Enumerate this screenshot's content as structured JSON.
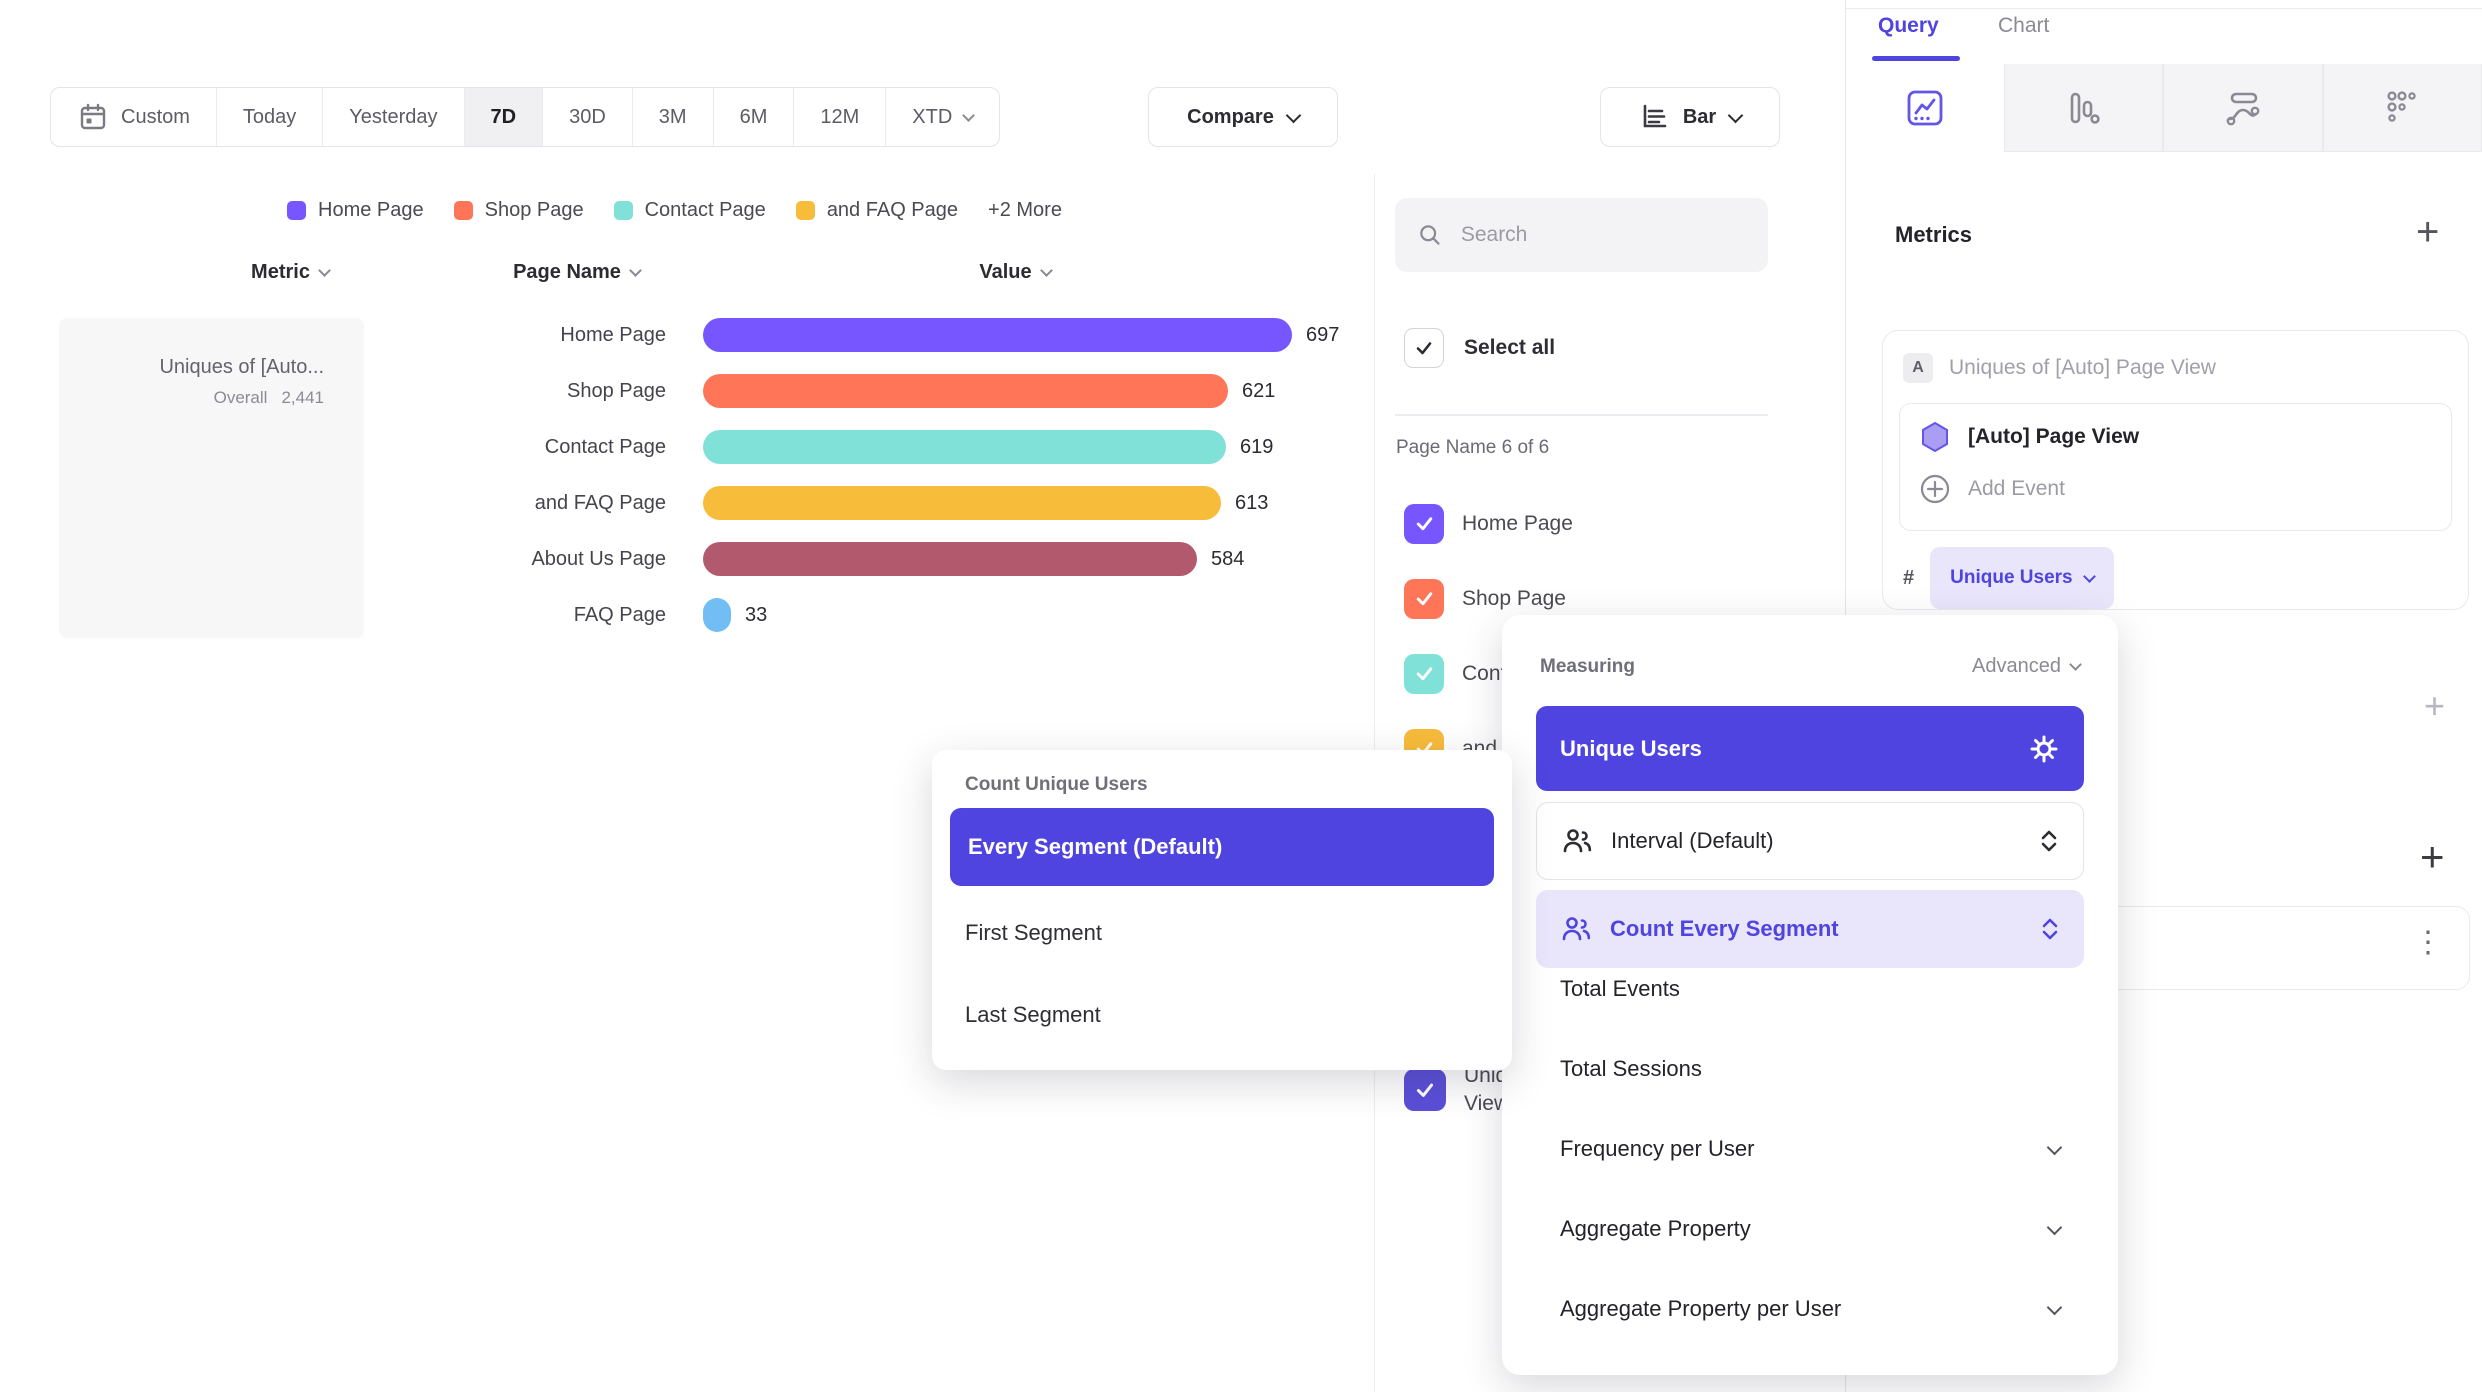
{
  "toolbar": {
    "date_ranges": [
      {
        "label": "Custom",
        "icon": "calendar"
      },
      {
        "label": "Today"
      },
      {
        "label": "Yesterday"
      },
      {
        "label": "7D",
        "active": true
      },
      {
        "label": "30D"
      },
      {
        "label": "3M"
      },
      {
        "label": "6M"
      },
      {
        "label": "12M"
      },
      {
        "label": "XTD",
        "chevron": true
      }
    ],
    "compare": "Compare",
    "chart_type": "Bar"
  },
  "legend": {
    "items": [
      {
        "label": "Home Page",
        "color": "#7856ff"
      },
      {
        "label": "Shop Page",
        "color": "#ff7557"
      },
      {
        "label": "Contact Page",
        "color": "#80e1d9"
      },
      {
        "label": "and FAQ Page",
        "color": "#f8bc3b"
      }
    ],
    "more": "+2 More"
  },
  "table": {
    "headers": {
      "metric": "Metric",
      "page": "Page Name",
      "value": "Value"
    },
    "metric_card": {
      "title": "Uniques of [Auto...",
      "overall_label": "Overall",
      "overall_value": "2,441"
    }
  },
  "chart_data": {
    "type": "bar",
    "orientation": "horizontal",
    "title": "",
    "categories": [
      "Home Page",
      "Shop Page",
      "Contact Page",
      "and FAQ Page",
      "About Us Page",
      "FAQ Page"
    ],
    "values": [
      697,
      621,
      619,
      613,
      584,
      33
    ],
    "colors": [
      "#7856ff",
      "#ff7557",
      "#80e1d9",
      "#f8bc3b",
      "#b2596e",
      "#72bef4"
    ],
    "value_max": 697,
    "legend_entries": [
      "Home Page",
      "Shop Page",
      "Contact Page",
      "and FAQ Page",
      "+2 More"
    ]
  },
  "filter_panel": {
    "search_placeholder": "Search",
    "select_all": "Select all",
    "group_label": "Page Name 6 of 6",
    "items": [
      {
        "label": "Home Page",
        "color": "#7856ff"
      },
      {
        "label": "Shop Page",
        "color": "#ff7557"
      },
      {
        "label": "Contact Page",
        "color": "#80e1d9"
      },
      {
        "label": "and FAQ Page",
        "color": "#f8bc3b"
      },
      {
        "label": "About Us Page",
        "color": "#b2596e"
      },
      {
        "label": "FAQ Page",
        "color": "#72bef4"
      }
    ],
    "series_item": {
      "label": "Uniques of [Auto] Page View",
      "label_lines": [
        "Uniques of [Auto] Page",
        "View"
      ],
      "color": "#5b4fd8"
    }
  },
  "query_panel": {
    "tabs": {
      "query": "Query",
      "chart": "Chart"
    },
    "metrics_title": "Metrics",
    "metric": {
      "badge": "A",
      "title": "Uniques of [Auto] Page View",
      "event": "[Auto] Page View",
      "add_event": "Add Event",
      "hash": "#",
      "pill": "Unique Users"
    }
  },
  "count_popup": {
    "title": "Count Unique Users",
    "selected": "Every Segment (Default)",
    "options": [
      "First Segment",
      "Last Segment"
    ]
  },
  "measuring_popup": {
    "title": "Measuring",
    "advanced": "Advanced",
    "selected": "Unique Users",
    "interval": "Interval (Default)",
    "count_mode": "Count Every Segment",
    "options": [
      {
        "label": "Total Events",
        "expandable": false
      },
      {
        "label": "Total Sessions",
        "expandable": false
      },
      {
        "label": "Frequency per User",
        "expandable": true
      },
      {
        "label": "Aggregate Property",
        "expandable": true
      },
      {
        "label": "Aggregate Property per User",
        "expandable": true
      }
    ]
  },
  "colors": {
    "accent": "#4f44e0",
    "accent_soft": "#e9e6fc",
    "bar_purple": "#7856ff"
  }
}
